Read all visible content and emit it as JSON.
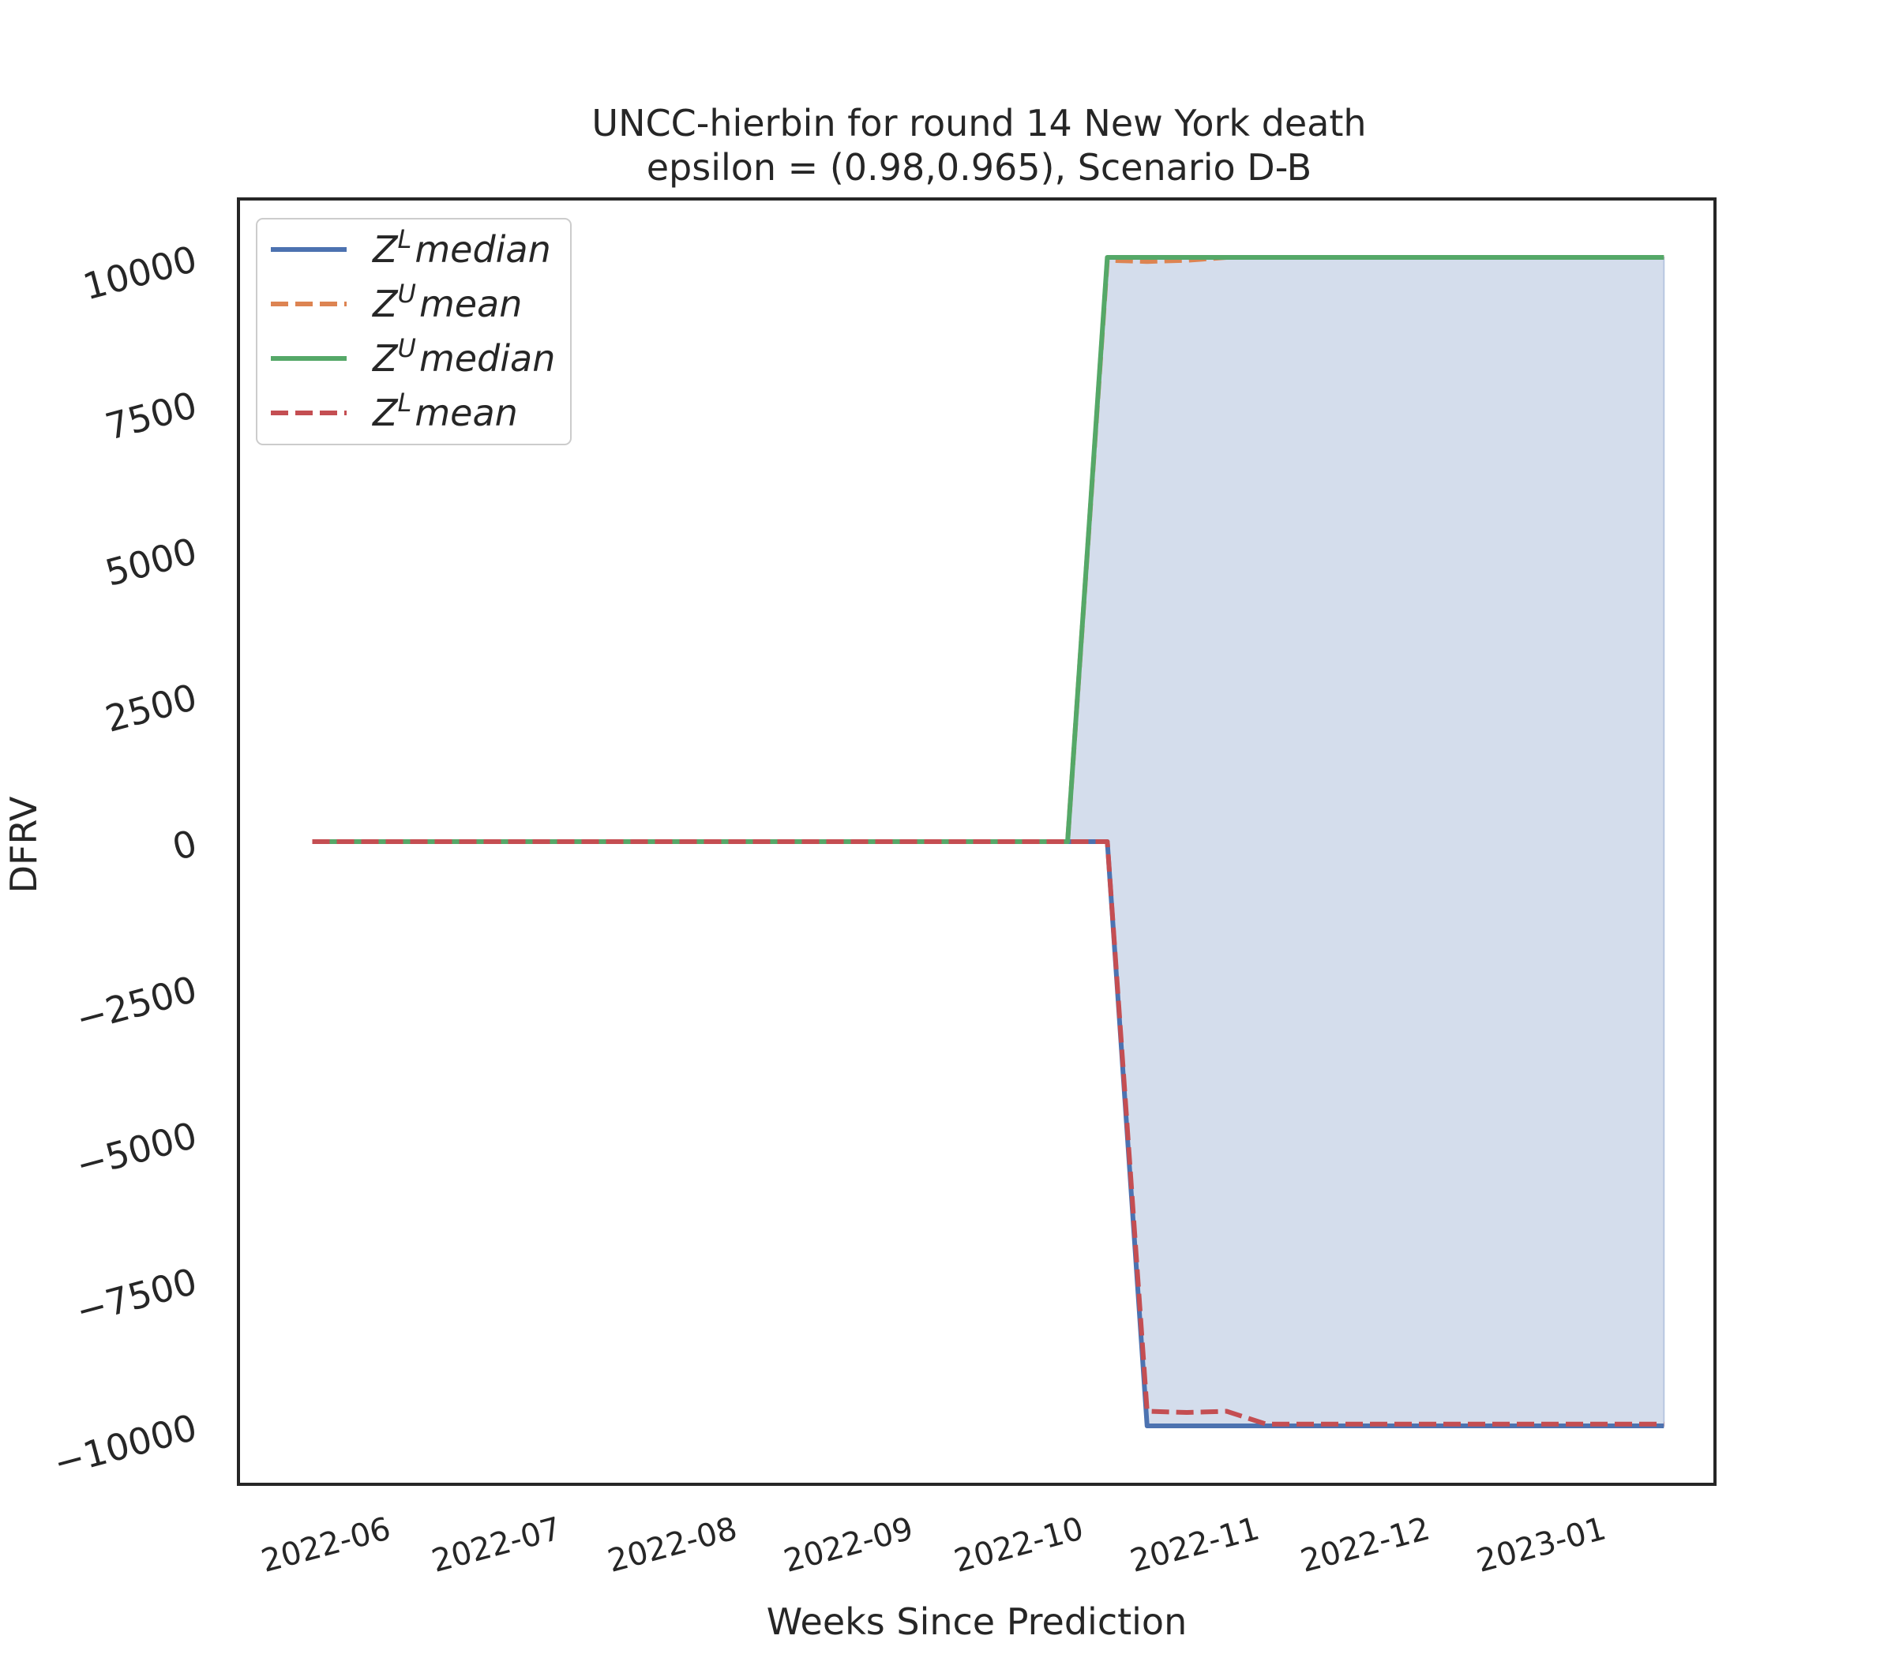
{
  "chart_data": {
    "type": "line",
    "title": "UNCC-hierbin for round 14 New York  death",
    "subtitle": "epsilon = (0.98,0.965), Scenario D-B",
    "xlabel": "Weeks Since Prediction",
    "ylabel": "DFRV",
    "ylim": [
      -11000,
      11000
    ],
    "y_ticks": [
      -10000,
      -7500,
      -5000,
      -2500,
      0,
      2500,
      5000,
      7500,
      10000
    ],
    "y_tick_labels": [
      "−10000",
      "−7500",
      "−5000",
      "−2500",
      "0",
      "2500",
      "5000",
      "7500",
      "10000"
    ],
    "x_tick_dates": [
      "2022-06-01",
      "2022-07-01",
      "2022-08-01",
      "2022-09-01",
      "2022-10-01",
      "2022-11-01",
      "2022-12-01",
      "2023-01-01"
    ],
    "x_tick_labels": [
      "2022-06",
      "2022-07",
      "2022-08",
      "2022-09",
      "2022-10",
      "2022-11",
      "2022-12",
      "2023-01"
    ],
    "xlim": [
      "2022-05-06",
      "2023-01-21"
    ],
    "grid": false,
    "legend_position": "top-left",
    "fill_between": {
      "upper": "Z^U median",
      "lower": "Z^L median",
      "color": "#b7c6e0",
      "opacity": 0.6
    },
    "series": [
      {
        "name": "Z^L median",
        "legend_base": "Z",
        "legend_sup": "L",
        "legend_rest": "median",
        "color": "#4c72b0",
        "dash": "solid",
        "points": [
          [
            "2022-05-19",
            0
          ],
          [
            "2022-09-29",
            0
          ],
          [
            "2022-10-06",
            0
          ],
          [
            "2022-10-13",
            -10000
          ],
          [
            "2022-10-20",
            -10000
          ],
          [
            "2022-10-27",
            -10000
          ],
          [
            "2022-11-03",
            -10000
          ],
          [
            "2023-01-12",
            -10000
          ]
        ]
      },
      {
        "name": "Z^U mean",
        "legend_base": "Z",
        "legend_sup": "U",
        "legend_rest": "mean",
        "color": "#dd8452",
        "dash": "dashed",
        "points": [
          [
            "2022-05-19",
            0
          ],
          [
            "2022-09-29",
            0
          ],
          [
            "2022-10-06",
            9950
          ],
          [
            "2022-10-13",
            9930
          ],
          [
            "2022-10-20",
            9950
          ],
          [
            "2022-10-27",
            10000
          ],
          [
            "2023-01-12",
            10000
          ]
        ]
      },
      {
        "name": "Z^U median",
        "legend_base": "Z",
        "legend_sup": "U",
        "legend_rest": "median",
        "color": "#55a868",
        "dash": "solid",
        "points": [
          [
            "2022-05-19",
            0
          ],
          [
            "2022-09-29",
            0
          ],
          [
            "2022-10-06",
            10000
          ],
          [
            "2023-01-12",
            10000
          ]
        ]
      },
      {
        "name": "Z^L mean",
        "legend_base": "Z",
        "legend_sup": "L",
        "legend_rest": "mean",
        "color": "#c44e52",
        "dash": "dashed",
        "points": [
          [
            "2022-05-19",
            0
          ],
          [
            "2022-10-06",
            0
          ],
          [
            "2022-10-13",
            -9750
          ],
          [
            "2022-10-20",
            -9770
          ],
          [
            "2022-10-27",
            -9750
          ],
          [
            "2022-11-03",
            -9970
          ],
          [
            "2023-01-12",
            -9970
          ]
        ]
      }
    ]
  }
}
